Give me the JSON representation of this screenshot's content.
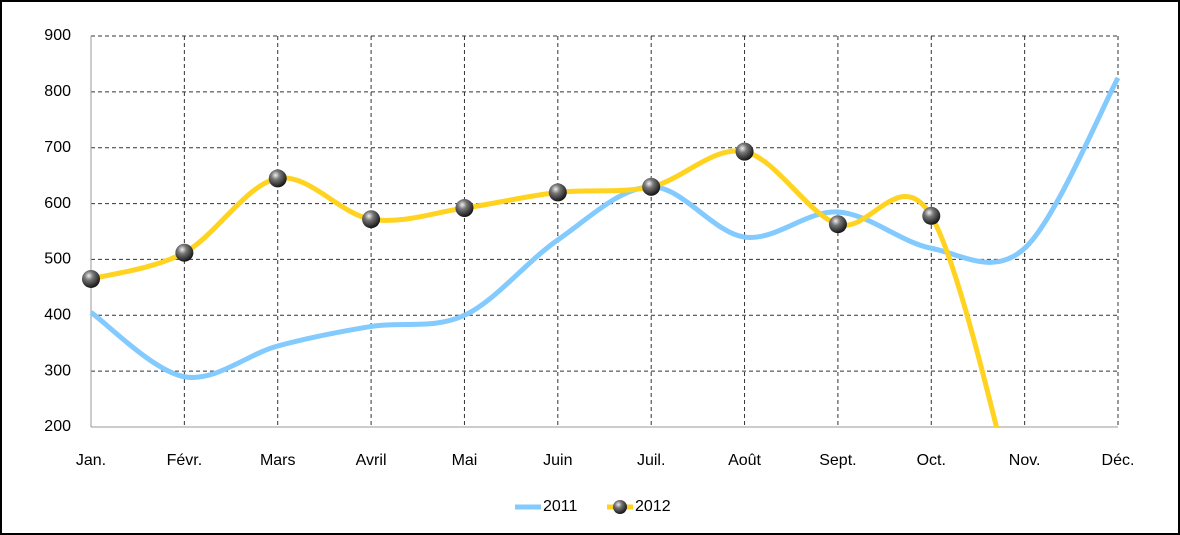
{
  "chart_data": {
    "type": "line",
    "categories": [
      "Jan.",
      "Févr.",
      "Mars",
      "Avril",
      "Mai",
      "Juin",
      "Juil.",
      "Août",
      "Sept.",
      "Oct.",
      "Nov.",
      "Déc."
    ],
    "series": [
      {
        "name": "2011",
        "color": "#83caff",
        "values": [
          405,
          290,
          345,
          380,
          400,
          535,
          630,
          540,
          585,
          520,
          520,
          825
        ],
        "smooth": true,
        "markers": false
      },
      {
        "name": "2012",
        "color": "#ffd320",
        "values": [
          465,
          512,
          645,
          572,
          592,
          620,
          630,
          693,
          563,
          578,
          0,
          null
        ],
        "smooth": true,
        "markers": true
      }
    ],
    "ylim": [
      200,
      900
    ],
    "yticks": [
      200,
      300,
      400,
      500,
      600,
      700,
      800,
      900
    ],
    "grid": true,
    "legend": "bottom"
  }
}
